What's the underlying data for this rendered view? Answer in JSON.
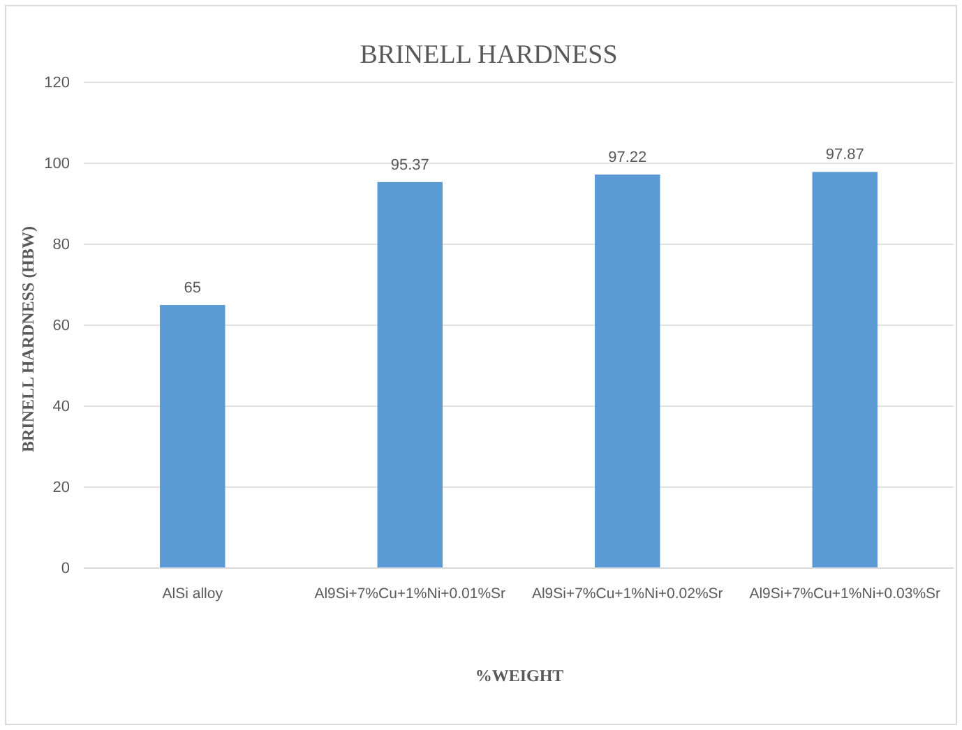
{
  "chart_data": {
    "type": "bar",
    "title": "BRINELL HARDNESS",
    "xlabel": "%WEIGHT",
    "ylabel": "BRINELL HARDNESS (HBW)",
    "categories": [
      "AlSi alloy",
      "Al9Si+7%Cu+1%Ni+0.01%Sr",
      "Al9Si+7%Cu+1%Ni+0.02%Sr",
      "Al9Si+7%Cu+1%Ni+0.03%Sr"
    ],
    "values": [
      65,
      95.37,
      97.22,
      97.87
    ],
    "color": "#5b9bd5",
    "ylim": [
      0,
      120
    ],
    "yticks": [
      0,
      20,
      40,
      60,
      80,
      100,
      120
    ],
    "grid": "y",
    "data_labels": true
  }
}
